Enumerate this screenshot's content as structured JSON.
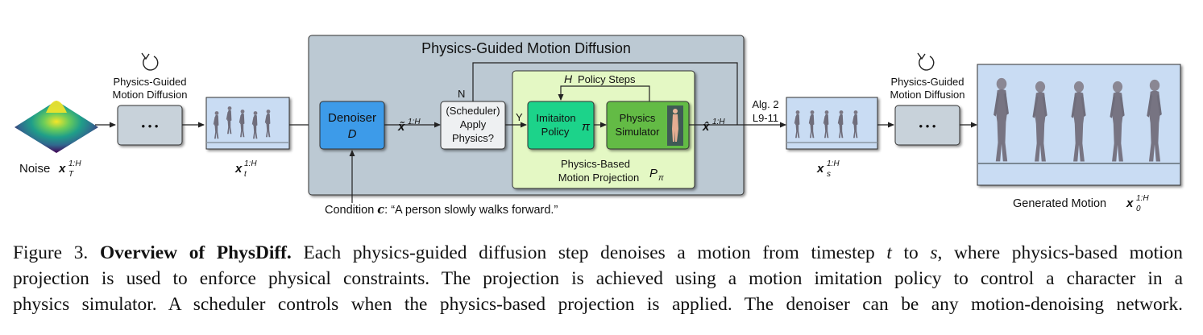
{
  "figure": {
    "main_title": "Physics-Guided Motion Diffusion",
    "noise_label": "Noise",
    "noise_math": "x",
    "noise_sup": "1:H",
    "noise_sub": "T",
    "left_cycle_label_line1": "Physics-Guided",
    "left_cycle_label_line2": "Motion Diffusion",
    "right_cycle_label_line1": "Physics-Guided",
    "right_cycle_label_line2": "Motion Diffusion",
    "dots": "•  •  •",
    "xt_base": "x",
    "xt_sub": "t",
    "xt_sup": "1:H",
    "denoiser_title": "Denoiser",
    "denoiser_math": "D",
    "xtilde_base": "x̃",
    "xtilde_sup": "1:H",
    "scheduler_line1": "(Scheduler)",
    "scheduler_line2": "Apply",
    "scheduler_line3": "Physics?",
    "no_label": "N",
    "yes_label": "Y",
    "policy_steps_math": "H",
    "policy_steps_text": "Policy Steps",
    "imitation_line1": "Imitaiton",
    "imitation_line2": "Policy",
    "imitation_math": "π",
    "simulator_line1": "Physics",
    "simulator_line2": "Simulator",
    "projection_line1": "Physics-Based",
    "projection_line2": "Motion Projection",
    "projection_math": "P",
    "projection_sub": "π",
    "xhat_base": "x̂",
    "xhat_sup": "1:H",
    "alg_line1": "Alg. 2",
    "alg_line2": "L9-11",
    "xs_base": "x",
    "xs_sub": "s",
    "xs_sup": "1:H",
    "condition_prefix": "Condition",
    "condition_math": "c",
    "condition_text": ": “A person slowly walks forward.”",
    "generated_label": "Generated Motion",
    "generated_base": "x",
    "generated_sub": "0",
    "generated_sup": "1:H"
  },
  "caption": {
    "fig_num": "Figure 3.",
    "bold_title": "Overview of PhysDiff.",
    "line1_rest_a": "Each physics-guided diffusion step denoises a motion from timestep",
    "t_var": "t",
    "to_word": "to",
    "s_var": "s",
    "line1_rest_b": ", where physics-based motion",
    "line2": "projection is used to enforce physical constraints.  The projection is achieved using a motion imitation policy to control a character in a",
    "line3": "physics simulator. A scheduler controls when the physics-based projection is applied. The denoiser can be any motion-denoising network."
  },
  "colors": {
    "big_panel": "#bcc9d3",
    "gray_box": "#c8d2da",
    "denoiser": "#3d9be9",
    "green_panel": "#e4f8c4",
    "imitation": "#1fd38a",
    "simulator": "#63bb45",
    "motion_bg": "#c9dcf3"
  }
}
